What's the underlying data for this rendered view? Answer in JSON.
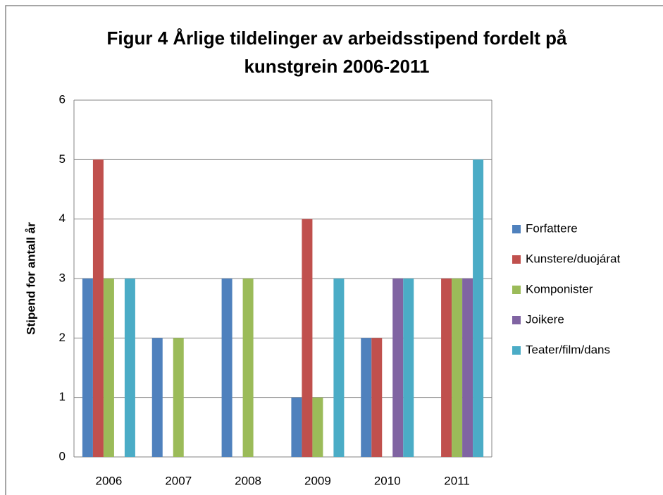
{
  "chart_data": {
    "type": "bar",
    "title": [
      "Figur 4 Årlige tildelinger av arbeidsstipend fordelt på",
      "kunstgrein 2006-2011"
    ],
    "y_label": "Stipend for antall år",
    "categories": [
      "2006",
      "2007",
      "2008",
      "2009",
      "2010",
      "2011"
    ],
    "series": [
      {
        "name": "Forfattere",
        "color": "#4f81bd",
        "values": [
          3,
          2,
          3,
          1,
          2,
          0
        ]
      },
      {
        "name": "Kunstere/duojárat",
        "color": "#c0504d",
        "values": [
          5,
          0,
          0,
          4,
          2,
          3
        ]
      },
      {
        "name": "Komponister",
        "color": "#9bbb59",
        "values": [
          3,
          2,
          3,
          1,
          0,
          3
        ]
      },
      {
        "name": "Joikere",
        "color": "#8064a2",
        "values": [
          0,
          0,
          0,
          0,
          3,
          3
        ]
      },
      {
        "name": "Teater/film/dans",
        "color": "#4bacc6",
        "values": [
          3,
          0,
          0,
          3,
          3,
          5
        ]
      }
    ],
    "ylim": [
      0,
      6
    ],
    "yticks": [
      0,
      1,
      2,
      3,
      4,
      5,
      6
    ],
    "grid": true,
    "legend": "right"
  }
}
